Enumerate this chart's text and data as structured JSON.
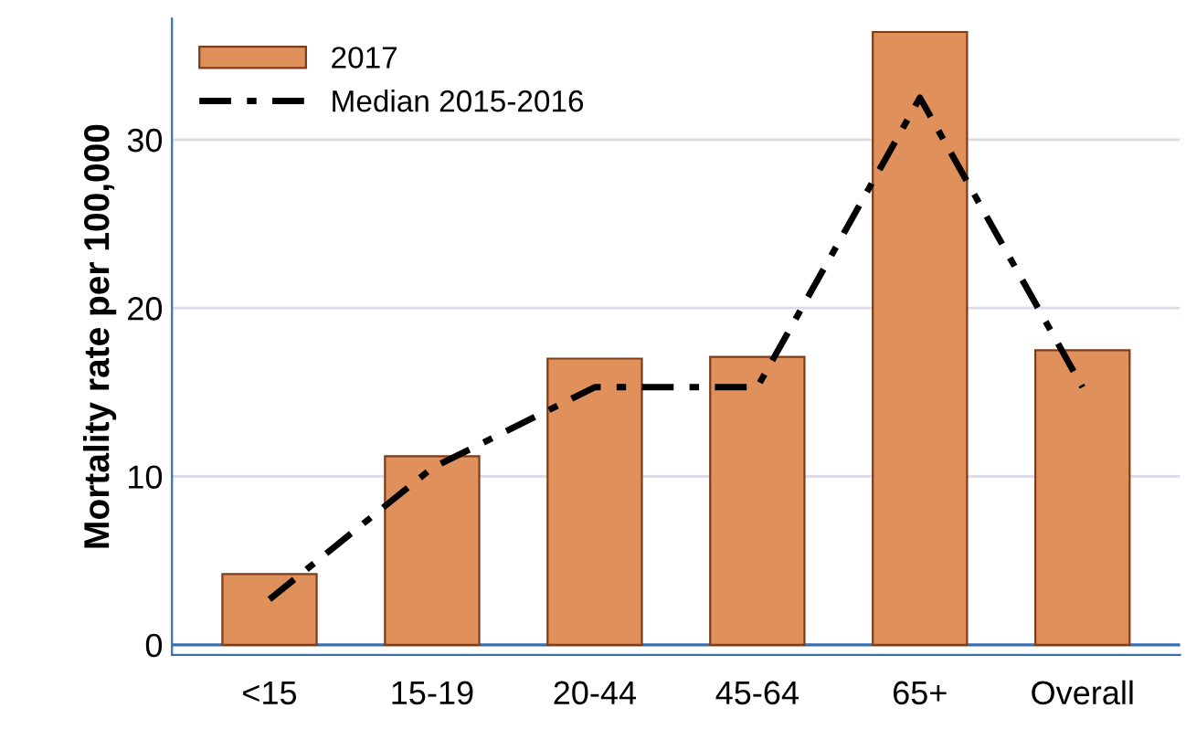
{
  "chart_data": {
    "type": "bar",
    "ylabel": "Mortality rate per 100,000",
    "categories": [
      "<15",
      "15-19",
      "20-44",
      "45-64",
      "65+",
      "Overall"
    ],
    "series": [
      {
        "name": "2017",
        "color": "#e0905a",
        "values": [
          4.2,
          11.2,
          17.0,
          17.1,
          36.4,
          17.5
        ]
      },
      {
        "name": "Median 2015-2016",
        "type": "line",
        "color": "#000000",
        "line_style": "dashed",
        "values": [
          2.7,
          10.5,
          15.3,
          15.3,
          32.5,
          15.3
        ]
      }
    ],
    "ylim": [
      -0.6,
      37.2
    ],
    "yticks": [
      0,
      10,
      20,
      30
    ],
    "grid": "y",
    "legend": "top left",
    "ref_lines": [
      {
        "axis": "y",
        "value": 0,
        "color": "#3a6fb0"
      }
    ]
  }
}
